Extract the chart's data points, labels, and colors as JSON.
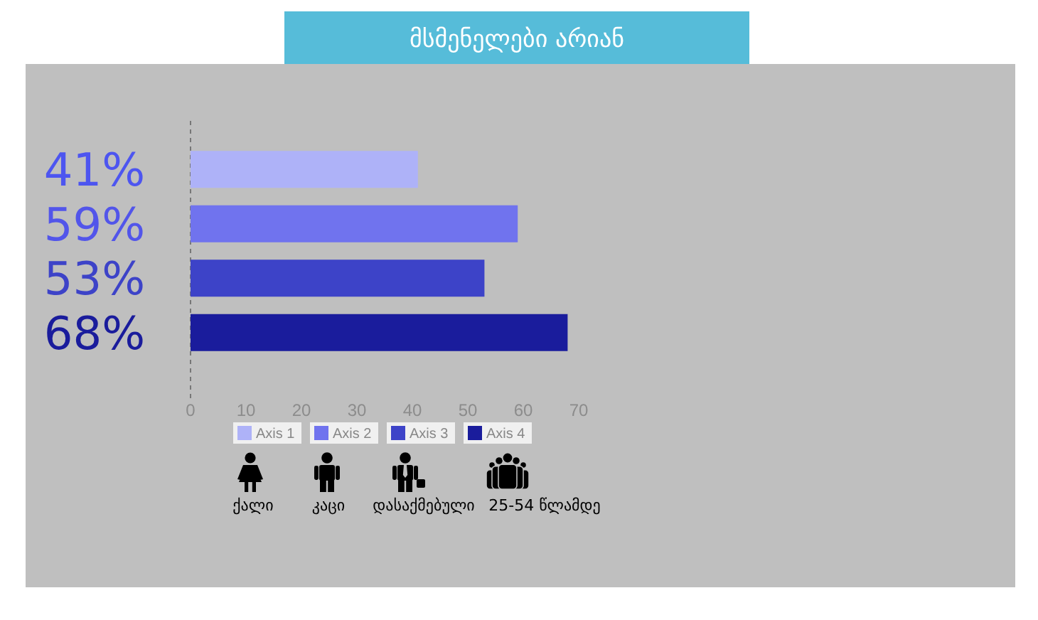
{
  "chart_data": {
    "type": "bar",
    "orientation": "horizontal",
    "title": "მსმენელები არიან",
    "categories": [
      null,
      null,
      null,
      null
    ],
    "series": [
      {
        "name": "Axis 1",
        "color": "#aeb2f8",
        "values": [
          41,
          null,
          null,
          null
        ],
        "value_labels": [
          "41%",
          null,
          null,
          null
        ]
      },
      {
        "name": "Axis 2",
        "color": "#7073ee",
        "values": [
          null,
          59,
          null,
          null
        ],
        "value_labels": [
          null,
          "59%",
          null,
          null
        ]
      },
      {
        "name": "Axis 3",
        "color": "#3d43c8",
        "values": [
          null,
          null,
          53,
          null
        ],
        "value_labels": [
          null,
          null,
          "53%",
          null
        ]
      },
      {
        "name": "Axis 4",
        "color": "#1a1c9c",
        "values": [
          null,
          null,
          null,
          68
        ],
        "value_labels": [
          null,
          null,
          null,
          "68%"
        ]
      }
    ],
    "xlim": [
      0,
      70
    ],
    "xticks": [
      0,
      10,
      20,
      30,
      40,
      50,
      60,
      70
    ],
    "legend": "bottom",
    "annotations": [
      "ქალი",
      "კაცი",
      "დასაქმებული",
      "25-54 წლამდე"
    ]
  }
}
